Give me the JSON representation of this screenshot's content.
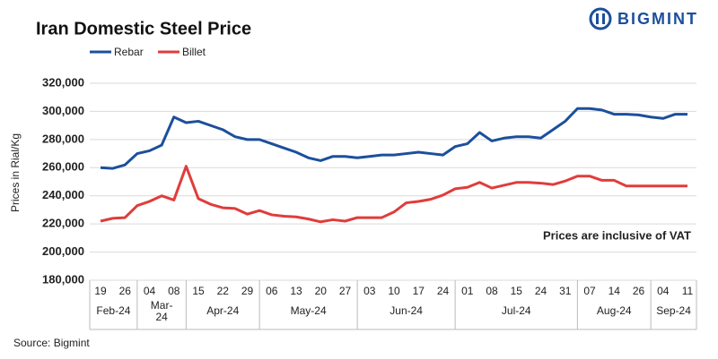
{
  "chart_data": {
    "type": "line",
    "title": "Iran Domestic Steel Price",
    "logo": "BIGMINT",
    "y_label": "Prices in Rial/Kg",
    "annotation": "Prices are inclusive  of VAT",
    "source": "Source: Bigmint",
    "categories": [
      "19",
      null,
      "26",
      null,
      "04",
      null,
      "08",
      null,
      "15",
      null,
      "22",
      null,
      "29",
      null,
      "06",
      null,
      "13",
      null,
      "20",
      null,
      "27",
      null,
      "03",
      null,
      "10",
      null,
      "17",
      null,
      "24",
      null,
      "01",
      null,
      "08",
      null,
      "15",
      null,
      "24",
      null,
      "31",
      null,
      "07",
      null,
      "14",
      null,
      "26",
      null,
      "04",
      null,
      "11"
    ],
    "months": [
      "Feb-24",
      "Mar-24",
      "Apr-24",
      "May-24",
      "Jun-24",
      "Jul-24",
      "Aug-24",
      "Sep-24"
    ],
    "series": [
      {
        "name": "Rebar",
        "color": "#1c4f9c",
        "values": [
          260000,
          259500,
          262000,
          270000,
          272000,
          276000,
          296000,
          292000,
          293000,
          290000,
          287000,
          282000,
          280000,
          280000,
          277000,
          274000,
          271000,
          267000,
          265000,
          268000,
          268000,
          267000,
          268000,
          269000,
          269000,
          270000,
          271000,
          270000,
          269000,
          275000,
          277000,
          285000,
          279000,
          281000,
          282000,
          282000,
          281000,
          287000,
          293000,
          302000,
          302000,
          301000,
          298000,
          298000,
          297500,
          296000,
          295000,
          298000,
          298000
        ]
      },
      {
        "name": "Billet",
        "color": "#e03c3c",
        "values": [
          222000,
          224000,
          224500,
          233000,
          236000,
          240000,
          237000,
          261000,
          238000,
          234000,
          231500,
          231000,
          227000,
          229500,
          226500,
          225500,
          225000,
          223500,
          221500,
          223000,
          222000,
          224500,
          224500,
          224500,
          228500,
          235000,
          236000,
          237500,
          240500,
          245000,
          246000,
          249500,
          245500,
          247500,
          249500,
          249500,
          249000,
          248000,
          250500,
          254000,
          254000,
          251000,
          251000,
          247000,
          247000,
          247000,
          247000,
          247000,
          247000
        ]
      }
    ],
    "ylim": [
      180000,
      320000
    ],
    "yticks": [
      {
        "value": 180000,
        "label": "180,000"
      },
      {
        "value": 200000,
        "label": "200,000"
      },
      {
        "value": 220000,
        "label": "220,000"
      },
      {
        "value": 240000,
        "label": "240,000"
      },
      {
        "value": 260000,
        "label": "260,000"
      },
      {
        "value": 280000,
        "label": "280,000"
      },
      {
        "value": 300000,
        "label": "300,000"
      },
      {
        "value": 320000,
        "label": "320,000"
      }
    ],
    "grid": true
  }
}
